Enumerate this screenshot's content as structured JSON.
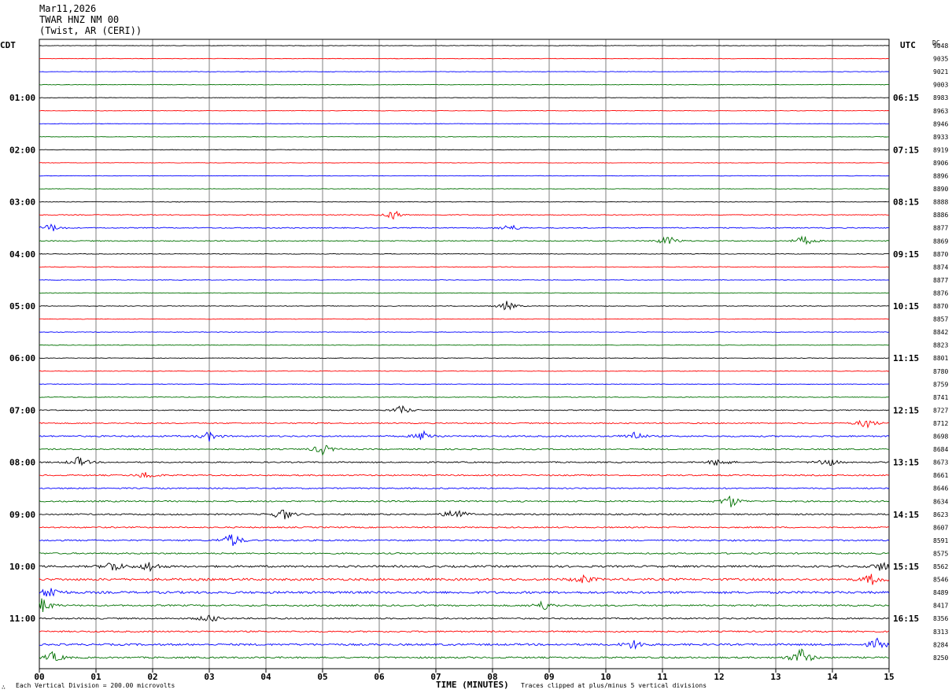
{
  "header": {
    "date": "Mar11,2026",
    "station": "TWAR HNZ NM 00",
    "location": "(Twist, AR (CERI))"
  },
  "labels": {
    "left_zone": "CDT",
    "right_zone": "UTC",
    "dc_header": "DC",
    "xlabel": "TIME (MINUTES)",
    "footer_left": "Each Vertical Division =  200.00 microvolts",
    "footer_right": "Traces clipped at plus/minus 5 vertical divisions",
    "corner_mark": "∴"
  },
  "colors": {
    "trace_cycle": [
      "#000000",
      "#ff0000",
      "#0000ff",
      "#007000"
    ],
    "grid": "#000000",
    "background": "#ffffff"
  },
  "chart_data": {
    "type": "line",
    "subtype": "helicorder",
    "minutes_per_line": 15,
    "xlim": [
      0,
      15
    ],
    "x_ticks": [
      "00",
      "01",
      "02",
      "03",
      "04",
      "05",
      "06",
      "07",
      "08",
      "09",
      "10",
      "11",
      "12",
      "13",
      "14",
      "15"
    ],
    "left_time_labels": [
      "01:00",
      "02:00",
      "03:00",
      "04:00",
      "05:00",
      "06:00",
      "07:00",
      "08:00",
      "09:00",
      "10:00",
      "11:00"
    ],
    "right_time_labels": [
      "06:15",
      "07:15",
      "08:15",
      "09:15",
      "10:15",
      "11:15",
      "12:15",
      "13:15",
      "14:15",
      "15:15",
      "16:15"
    ],
    "dc_values": [
      "9048",
      "9035",
      "9021",
      "9003",
      "8983",
      "8963",
      "8946",
      "8933",
      "8919",
      "8906",
      "8896",
      "8890",
      "8888",
      "8886",
      "8877",
      "8869",
      "8870",
      "8874",
      "8877",
      "8876",
      "8870",
      "8857",
      "8842",
      "8823",
      "8801",
      "8780",
      "8759",
      "8741",
      "8727",
      "8712",
      "8698",
      "8684",
      "8673",
      "8661",
      "8646",
      "8634",
      "8623",
      "8607",
      "8591",
      "8575",
      "8562",
      "8546",
      "8489",
      "8417",
      "8356",
      "8313",
      "8284",
      "8250"
    ],
    "trace_activity": [
      0.3,
      0.3,
      0.3,
      0.35,
      0.3,
      0.3,
      0.3,
      0.3,
      0.35,
      0.3,
      0.3,
      0.3,
      0.4,
      0.5,
      0.6,
      0.6,
      0.4,
      0.4,
      0.35,
      0.35,
      0.4,
      0.35,
      0.35,
      0.4,
      0.35,
      0.35,
      0.35,
      0.45,
      0.6,
      0.7,
      0.9,
      0.8,
      0.8,
      0.8,
      0.8,
      0.9,
      0.9,
      0.8,
      0.9,
      0.9,
      1.2,
      1.4,
      1.4,
      1.0,
      0.9,
      0.9,
      1.2,
      1.0
    ],
    "events": [
      {
        "line": 13,
        "minute": 6.25,
        "amp": 2.2
      },
      {
        "line": 14,
        "minute": 0.2,
        "amp": 2.0
      },
      {
        "line": 14,
        "minute": 8.3,
        "amp": 1.8
      },
      {
        "line": 15,
        "minute": 11.1,
        "amp": 2.5
      },
      {
        "line": 15,
        "minute": 13.5,
        "amp": 2.4
      },
      {
        "line": 20,
        "minute": 8.25,
        "amp": 2.2
      },
      {
        "line": 28,
        "minute": 6.4,
        "amp": 2.2
      },
      {
        "line": 29,
        "minute": 14.6,
        "amp": 2.5
      },
      {
        "line": 30,
        "minute": 3.0,
        "amp": 2.0
      },
      {
        "line": 30,
        "minute": 6.8,
        "amp": 2.6
      },
      {
        "line": 30,
        "minute": 10.5,
        "amp": 2.2
      },
      {
        "line": 31,
        "minute": 5.0,
        "amp": 2.5
      },
      {
        "line": 32,
        "minute": 0.7,
        "amp": 2.4
      },
      {
        "line": 32,
        "minute": 12.0,
        "amp": 2.0
      },
      {
        "line": 32,
        "minute": 13.9,
        "amp": 2.4
      },
      {
        "line": 33,
        "minute": 1.9,
        "amp": 1.8
      },
      {
        "line": 35,
        "minute": 12.2,
        "amp": 2.8
      },
      {
        "line": 36,
        "minute": 4.3,
        "amp": 3.0
      },
      {
        "line": 36,
        "minute": 7.35,
        "amp": 3.2
      },
      {
        "line": 38,
        "minute": 3.4,
        "amp": 3.5
      },
      {
        "line": 40,
        "minute": 1.3,
        "amp": 2.8
      },
      {
        "line": 40,
        "minute": 1.95,
        "amp": 2.4
      },
      {
        "line": 40,
        "minute": 14.9,
        "amp": 2.6
      },
      {
        "line": 41,
        "minute": 9.6,
        "amp": 2.0
      },
      {
        "line": 41,
        "minute": 14.7,
        "amp": 2.4
      },
      {
        "line": 42,
        "minute": 0.2,
        "amp": 3.0
      },
      {
        "line": 43,
        "minute": 0.05,
        "amp": 3.5
      },
      {
        "line": 43,
        "minute": 8.9,
        "amp": 2.2
      },
      {
        "line": 44,
        "minute": 3.0,
        "amp": 2.0
      },
      {
        "line": 46,
        "minute": 10.5,
        "amp": 2.2
      },
      {
        "line": 46,
        "minute": 14.8,
        "amp": 2.5
      },
      {
        "line": 47,
        "minute": 0.25,
        "amp": 2.5
      },
      {
        "line": 47,
        "minute": 13.45,
        "amp": 4.5
      }
    ]
  }
}
